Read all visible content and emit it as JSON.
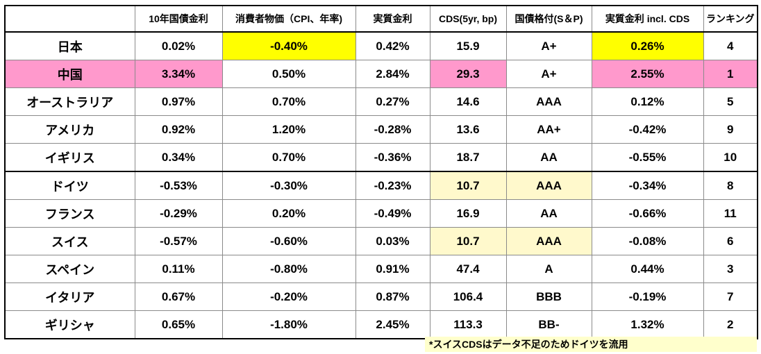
{
  "headers": [
    "",
    "10年国債金利",
    "消費者物価（CPI、年率)",
    "実質金利",
    "CDS(5yr, bp)",
    "国債格付(S＆P)",
    "実質金利 incl. CDS",
    "ランキング"
  ],
  "rows": [
    {
      "cells": [
        "日本",
        "0.02%",
        "-0.40%",
        "0.42%",
        "15.9",
        "A+",
        "0.26%",
        "4"
      ]
    },
    {
      "cells": [
        "中国",
        "3.34%",
        "0.50%",
        "2.84%",
        "29.3",
        "A+",
        "2.55%",
        "1"
      ]
    },
    {
      "cells": [
        "オーストラリア",
        "0.97%",
        "0.70%",
        "0.27%",
        "14.6",
        "AAA",
        "0.12%",
        "5"
      ]
    },
    {
      "cells": [
        "アメリカ",
        "0.92%",
        "1.20%",
        "-0.28%",
        "13.6",
        "AA+",
        "-0.42%",
        "9"
      ]
    },
    {
      "cells": [
        "イギリス",
        "0.34%",
        "0.70%",
        "-0.36%",
        "18.7",
        "AA",
        "-0.55%",
        "10"
      ]
    },
    {
      "cells": [
        "ドイツ",
        "-0.53%",
        "-0.30%",
        "-0.23%",
        "10.7",
        "AAA",
        "-0.34%",
        "8"
      ]
    },
    {
      "cells": [
        "フランス",
        "-0.29%",
        "0.20%",
        "-0.49%",
        "16.9",
        "AA",
        "-0.66%",
        "11"
      ]
    },
    {
      "cells": [
        "スイス",
        "-0.57%",
        "-0.60%",
        "0.03%",
        "10.7",
        "AAA",
        "-0.08%",
        "6"
      ]
    },
    {
      "cells": [
        "スペイン",
        "0.11%",
        "-0.80%",
        "0.91%",
        "47.4",
        "A",
        "0.44%",
        "3"
      ]
    },
    {
      "cells": [
        "イタリア",
        "0.67%",
        "-0.20%",
        "0.87%",
        "106.4",
        "BBB",
        "-0.19%",
        "7"
      ]
    },
    {
      "cells": [
        "ギリシャ",
        "0.65%",
        "-1.80%",
        "2.45%",
        "113.3",
        "BB-",
        "1.32%",
        "2"
      ]
    }
  ],
  "colors": {
    "yellow": "#ffff00",
    "pink": "#ff99cc",
    "cream": "#fff9cc"
  },
  "note": "*スイスCDSはデータ不足のためドイツを流用"
}
